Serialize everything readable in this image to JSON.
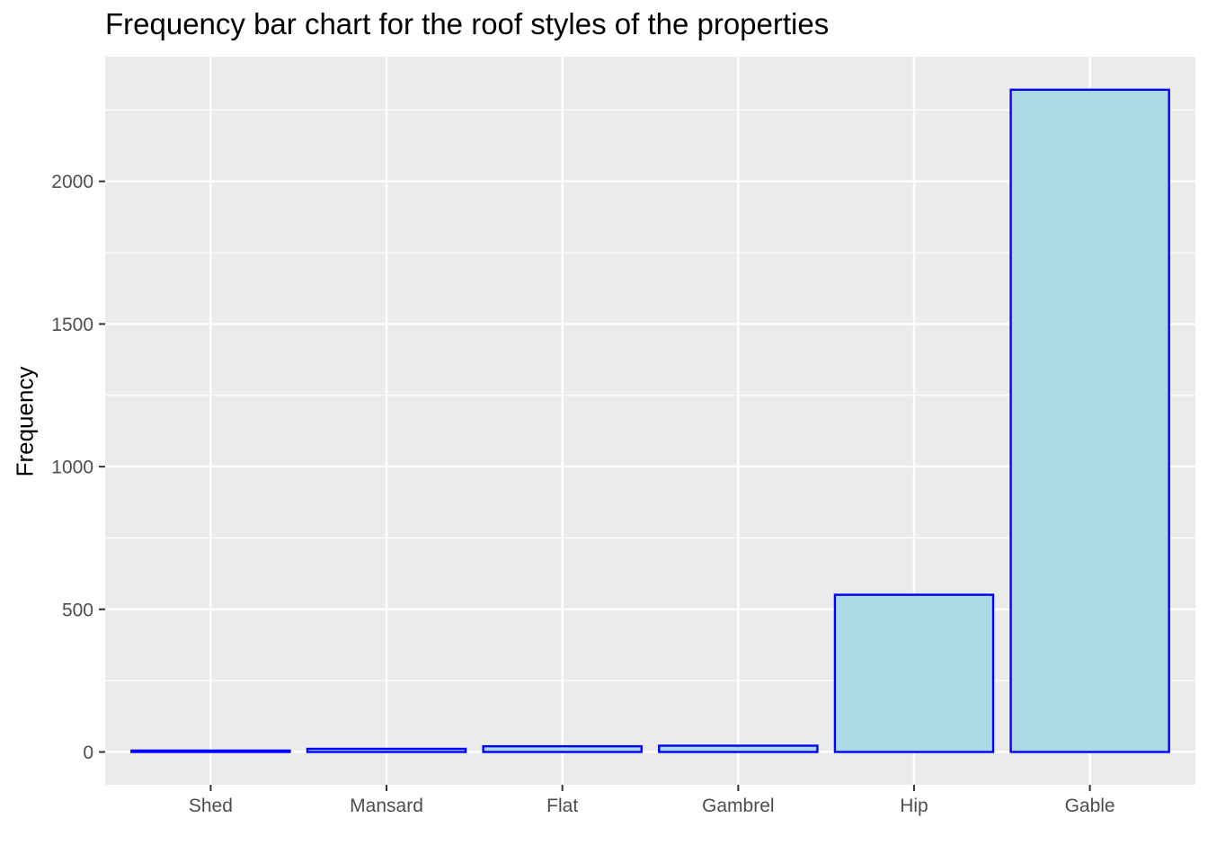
{
  "chart_data": {
    "type": "bar",
    "title": "Frequency bar chart for the roof styles of the properties",
    "xlabel": "",
    "ylabel": "Frequency",
    "categories": [
      "Shed",
      "Mansard",
      "Flat",
      "Gambrel",
      "Hip",
      "Gable"
    ],
    "values": [
      5,
      11,
      20,
      22,
      551,
      2321
    ],
    "ylim": [
      -115,
      2437
    ],
    "yticks": [
      0,
      500,
      1000,
      1500,
      2000
    ],
    "ytick_labels": [
      "0",
      "500",
      "1000",
      "1500",
      "2000"
    ],
    "grid": true,
    "legend": "none",
    "colors": {
      "bar_fill": "#add8e6",
      "bar_stroke": "#0000ff",
      "panel_background": "#ebebeb",
      "grid": "#ffffff",
      "tick_text": "#4d4d4d"
    }
  }
}
